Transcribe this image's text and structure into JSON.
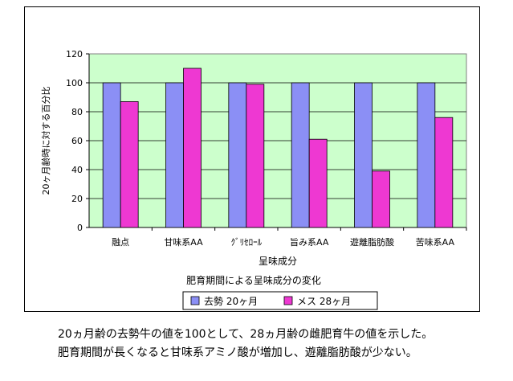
{
  "chart_data": {
    "type": "bar",
    "title": "肥育期間による呈味成分の変化",
    "xlabel": "呈味成分",
    "ylabel": "20ヶ月齢時に対する百分比",
    "categories": [
      "融点",
      "甘味系AA",
      "ｸﾞﾘｾﾛｰﾙ",
      "旨み系AA",
      "遊離脂肪酸",
      "苦味系AA"
    ],
    "series": [
      {
        "name": "去勢 20ヶ月",
        "color": "#8b8ff5",
        "values": [
          100,
          100,
          100,
          100,
          100,
          100
        ]
      },
      {
        "name": "メス 28ヶ月",
        "color": "#ee38d2",
        "values": [
          87,
          110,
          99,
          61,
          39,
          76
        ]
      }
    ],
    "ylim": [
      0,
      120
    ],
    "yticks": [
      0,
      20,
      40,
      60,
      80,
      100,
      120
    ],
    "grid": true,
    "plot_background": "#ccffcc",
    "legend_position": "bottom"
  },
  "caption": {
    "line1": "20ヵ月齢の去勢牛の値を100として、28ヵ月齢の雌肥育牛の値を示した。",
    "line2": "肥育期間が長くなると甘味系アミノ酸が増加し、遊離脂肪酸が少ない。"
  }
}
